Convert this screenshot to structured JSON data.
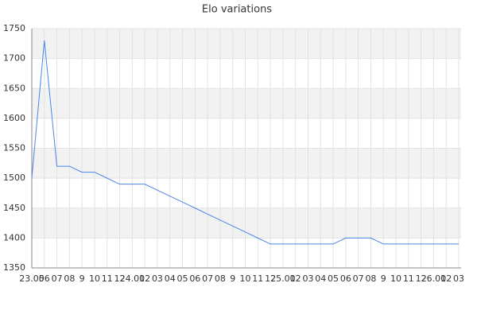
{
  "chart_data": {
    "type": "line",
    "title": "Elo variations",
    "categories": [
      "23.05",
      "06",
      "07",
      "08",
      "9",
      "10",
      "11",
      "12",
      "24.01",
      "02",
      "03",
      "04",
      "05",
      "06",
      "07",
      "08",
      "9",
      "10",
      "11",
      "12",
      "25.01",
      "02",
      "03",
      "04",
      "05",
      "06",
      "07",
      "08",
      "9",
      "10",
      "11",
      "12",
      "26.01",
      "02",
      "03"
    ],
    "series": [
      {
        "name": "Elo",
        "color": "#4a86e8",
        "values": [
          1500,
          1730,
          1520,
          1520,
          1510,
          1510,
          1500,
          1490,
          1490,
          1490,
          1480,
          1470,
          1460,
          1450,
          1440,
          1430,
          1420,
          1410,
          1400,
          1390,
          1390,
          1390,
          1390,
          1390,
          1390,
          1400,
          1400,
          1400,
          1390,
          1390,
          1390,
          1390,
          1390,
          1390,
          1390
        ]
      }
    ],
    "ylim": [
      1350,
      1750
    ],
    "yticks": [
      1350,
      1400,
      1450,
      1500,
      1550,
      1600,
      1650,
      1700,
      1750
    ],
    "grid": true
  }
}
